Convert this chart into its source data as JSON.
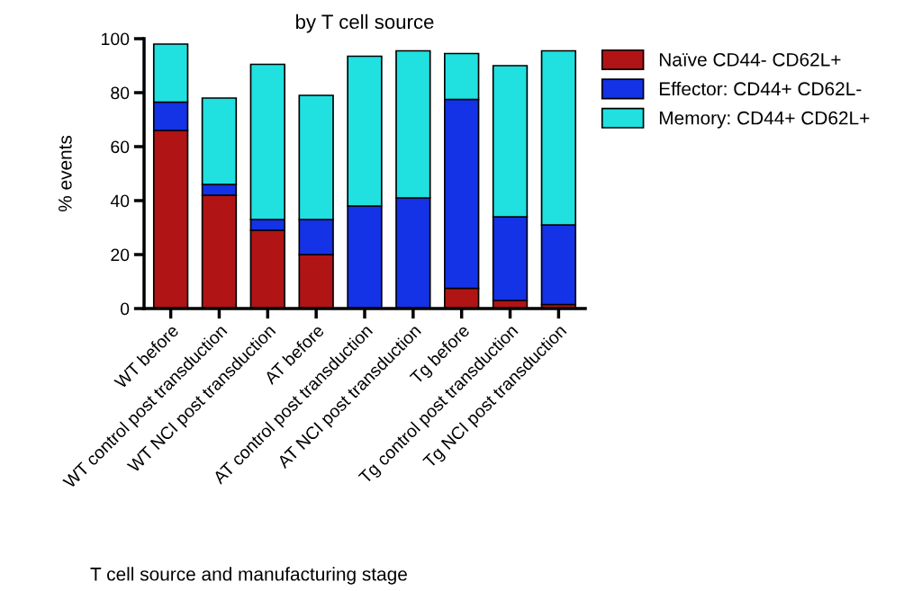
{
  "chart_data": {
    "type": "bar",
    "title": "by T cell source",
    "ylabel": "% events",
    "xlabel": "T cell source and manufacturing stage",
    "categories": [
      "WT before",
      "WT control post transduction",
      "WT NCI post transduction",
      "AT before",
      "AT control post transduction",
      "AT NCI post transduction",
      "Tg before",
      "Tg control post transduction",
      "Tg NCI post transduction"
    ],
    "stacked": true,
    "series": [
      {
        "name": "Naïve CD44- CD62L+",
        "color": "#b01414",
        "values": [
          66,
          42,
          29,
          20,
          null,
          null,
          7.5,
          3,
          1.5
        ]
      },
      {
        "name": "Effector: CD44+ CD62L-",
        "color": "#1432e6",
        "values": [
          10.5,
          4,
          4,
          13,
          38,
          41,
          70,
          31,
          29.5
        ]
      },
      {
        "name": "Memory: CD44+ CD62L+",
        "color": "#20e0e0",
        "values": [
          21.5,
          32,
          57.5,
          46,
          55.5,
          54.5,
          17,
          56,
          64.5
        ]
      }
    ],
    "ylim": [
      0,
      100
    ],
    "yticks": [
      0,
      20,
      40,
      60,
      80,
      100
    ],
    "grid": false,
    "legend": "top right"
  }
}
